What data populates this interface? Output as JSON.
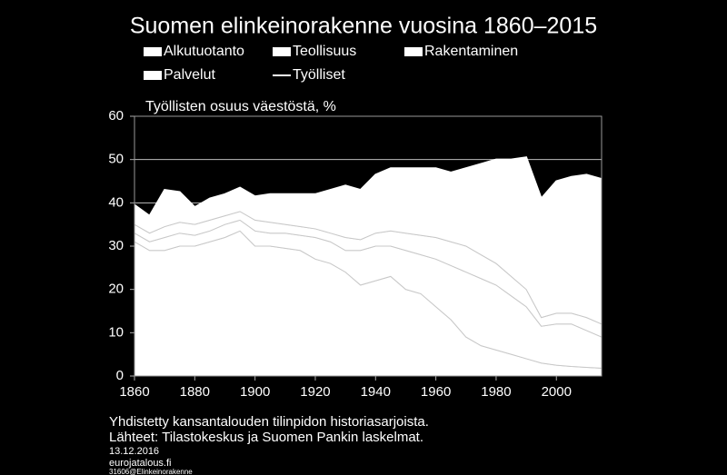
{
  "chart_data": {
    "type": "area",
    "stacked": true,
    "title": "Suomen elinkeinorakenne vuosina 1860–2015",
    "y_label": "Työllisten osuus väestöstä, %",
    "x": [
      1860,
      1865,
      1870,
      1875,
      1880,
      1885,
      1890,
      1895,
      1900,
      1905,
      1910,
      1915,
      1920,
      1925,
      1930,
      1935,
      1940,
      1945,
      1950,
      1955,
      1960,
      1965,
      1970,
      1975,
      1980,
      1985,
      1990,
      1995,
      2000,
      2005,
      2010,
      2015
    ],
    "series": [
      {
        "name": "Alkutuotanto",
        "color": "#ffffff",
        "values": [
          31,
          29,
          29,
          30,
          30,
          31,
          32,
          33.5,
          30,
          30,
          29.5,
          29,
          27,
          26,
          24,
          21,
          22,
          23,
          20,
          19,
          16,
          13,
          9,
          7,
          6,
          5,
          4,
          3,
          2.5,
          2.2,
          2,
          1.8
        ]
      },
      {
        "name": "Teollisuus",
        "color": "#ffffff",
        "values": [
          2,
          2,
          3,
          3,
          2.5,
          2.5,
          3,
          2.5,
          3.5,
          3,
          3.5,
          3.5,
          5,
          5,
          5,
          8,
          8,
          7,
          9,
          9,
          11,
          12.5,
          15,
          15.5,
          15,
          13.5,
          12,
          8.5,
          9.5,
          9.8,
          8.5,
          7.2
        ]
      },
      {
        "name": "Rakentaminen",
        "color": "#ffffff",
        "values": [
          2,
          2,
          2.5,
          2.5,
          2.5,
          2.5,
          2,
          2,
          2.5,
          2.5,
          2,
          2,
          2,
          2,
          3,
          2.5,
          3,
          3.5,
          4,
          4.5,
          5,
          5.5,
          6,
          5.5,
          5,
          4.5,
          4,
          2,
          2.5,
          2.5,
          3,
          3
        ]
      },
      {
        "name": "Palvelut",
        "color": "#ffffff",
        "values": [
          4.5,
          4,
          8.5,
          7,
          4,
          5,
          5,
          5.5,
          5.5,
          6.5,
          7,
          7.5,
          8,
          10,
          12,
          11.5,
          13.5,
          14.5,
          15,
          15.5,
          16,
          16,
          18,
          21,
          24,
          27,
          30.5,
          27.5,
          30.5,
          31.5,
          33,
          33.5
        ]
      },
      {
        "name": "Työlliset",
        "color": "#ffffff",
        "type": "line",
        "values": [
          39.5,
          37,
          43,
          42.5,
          39,
          41,
          42,
          43.5,
          41.5,
          42,
          42,
          42,
          42,
          43,
          44,
          43,
          46.5,
          48,
          48,
          48,
          48,
          47,
          48,
          49,
          50,
          50,
          50.5,
          41,
          45,
          46,
          46.5,
          45.5
        ]
      }
    ],
    "xlim": [
      1860,
      2015
    ],
    "xticks": [
      1860,
      1880,
      1900,
      1920,
      1940,
      1960,
      1980,
      2000
    ],
    "ylim": [
      0,
      60
    ],
    "yticks": [
      0,
      10,
      20,
      30,
      40,
      50,
      60
    ],
    "grid": true,
    "notes": [
      "Yhdistetty kansantalouden tilinpidon historiasarjoista.",
      "Lähteet: Tilastokeskus ja Suomen Pankin laskelmat.",
      "13.12.2016",
      "eurojatalous.fi",
      "31606@Elinkeinorakenne"
    ]
  }
}
